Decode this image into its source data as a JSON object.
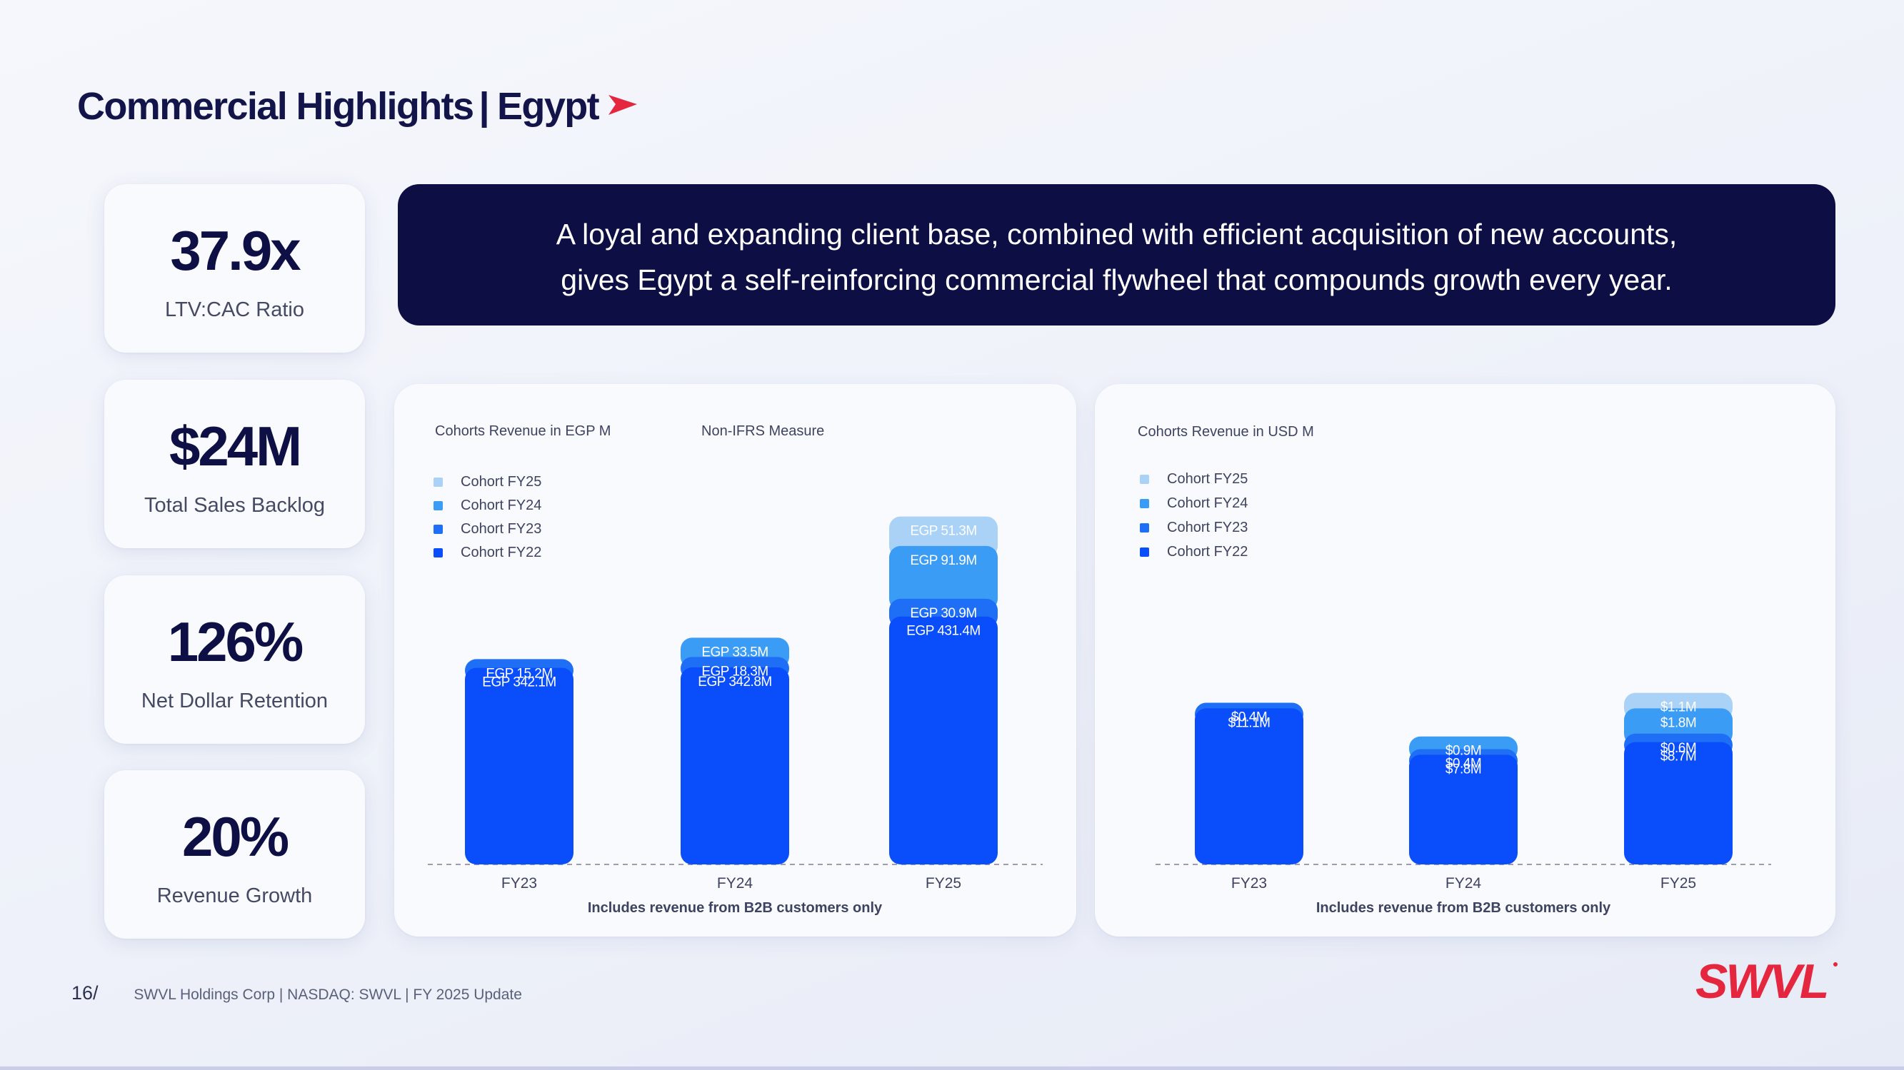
{
  "header": {
    "title_main": "Commercial Highlights",
    "title_sep": "|",
    "title_region": "Egypt",
    "accent_color": "#e5263f"
  },
  "kpis": [
    {
      "value": "37.9x",
      "label": "LTV:CAC Ratio"
    },
    {
      "value": "$24M",
      "label": "Total Sales Backlog"
    },
    {
      "value": "126%",
      "label": "Net Dollar Retention"
    },
    {
      "value": "20%",
      "label": "Revenue Growth"
    }
  ],
  "banner": {
    "line1": "A loyal and expanding client base, combined with efficient acquisition of new accounts,",
    "line2": "gives Egypt a self-reinforcing commercial flywheel that compounds growth every year."
  },
  "footer": {
    "page": "16/",
    "text": "SWVL Holdings Corp  |  NASDAQ: SWVL  |  FY 2025 Update",
    "logo": "SWVL"
  },
  "chart_data": [
    {
      "type": "bar",
      "stacked": true,
      "title": "Cohorts Revenue in EGP M",
      "subtitle": "Non-IFRS Measure",
      "note": "Includes revenue from B2B customers only",
      "categories": [
        "FY23",
        "FY24",
        "FY25"
      ],
      "legend_position": "top-left",
      "series": [
        {
          "name": "Cohort FY22",
          "color": "#0a4dfb",
          "values": [
            342.1,
            342.8,
            431.4
          ],
          "labels": [
            "EGP 342.1M",
            "EGP 342.8M",
            "EGP 431.4M"
          ]
        },
        {
          "name": "Cohort FY23",
          "color": "#1f6ef6",
          "values": [
            15.2,
            18.3,
            30.9
          ],
          "labels": [
            "EGP 15.2M",
            "EGP 18.3M",
            "EGP 30.9M"
          ]
        },
        {
          "name": "Cohort FY24",
          "color": "#3b9cf5",
          "values": [
            0,
            33.5,
            91.9
          ],
          "labels": [
            "",
            "EGP 33.5M",
            "EGP 91.9M"
          ]
        },
        {
          "name": "Cohort FY25",
          "color": "#a9d2f6",
          "values": [
            0,
            0,
            51.3
          ],
          "labels": [
            "",
            "",
            "EGP 51.3M"
          ]
        }
      ]
    },
    {
      "type": "bar",
      "stacked": true,
      "title": "Cohorts Revenue in USD M",
      "note": "Includes revenue from B2B customers only",
      "categories": [
        "FY23",
        "FY24",
        "FY25"
      ],
      "legend_position": "top-left",
      "series": [
        {
          "name": "Cohort FY22",
          "color": "#0a4dfb",
          "values": [
            11.1,
            7.8,
            8.7
          ],
          "labels": [
            "$11.1M",
            "$7.8M",
            "$8.7M"
          ]
        },
        {
          "name": "Cohort FY23",
          "color": "#1f6ef6",
          "values": [
            0.4,
            0.4,
            0.6
          ],
          "labels": [
            "$0.4M",
            "$0.4M",
            "$0.6M"
          ]
        },
        {
          "name": "Cohort FY24",
          "color": "#3b9cf5",
          "values": [
            0,
            0.9,
            1.8
          ],
          "labels": [
            "",
            "$0.9M",
            "$1.8M"
          ]
        },
        {
          "name": "Cohort FY25",
          "color": "#a9d2f6",
          "values": [
            0,
            0,
            1.1
          ],
          "labels": [
            "",
            "",
            "$1.1M"
          ]
        }
      ]
    }
  ]
}
